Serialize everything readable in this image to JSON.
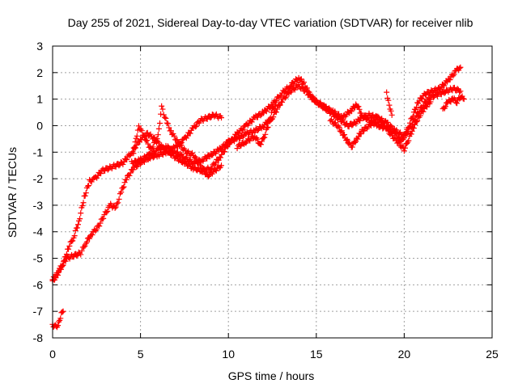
{
  "chart_data": {
    "type": "scatter",
    "title": "Day 255 of 2021, Sidereal Day-to-day VTEC variation (SDTVAR) for receiver nlib",
    "xlabel": "GPS time / hours",
    "ylabel": "SDTVAR / TECUs",
    "xlim": [
      0,
      25
    ],
    "ylim": [
      -8,
      3
    ],
    "xticks": [
      0,
      5,
      10,
      15,
      20,
      25
    ],
    "yticks": [
      -8,
      -7,
      -6,
      -5,
      -4,
      -3,
      -2,
      -1,
      0,
      1,
      2,
      3
    ],
    "grid": true,
    "marker": "plus",
    "color": "#ff0000",
    "series": [
      {
        "name": "track-1",
        "points": [
          [
            0.0,
            -5.8
          ],
          [
            0.3,
            -5.6
          ],
          [
            0.6,
            -5.2
          ],
          [
            0.9,
            -4.6
          ],
          [
            1.2,
            -4.2
          ],
          [
            1.5,
            -3.6
          ],
          [
            1.8,
            -2.7
          ],
          [
            2.1,
            -2.1
          ],
          [
            2.4,
            -2.0
          ],
          [
            2.8,
            -1.7
          ],
          [
            3.2,
            -1.6
          ],
          [
            3.6,
            -1.5
          ],
          [
            4.0,
            -1.4
          ],
          [
            4.5,
            -1.0
          ],
          [
            5.0,
            -0.5
          ],
          [
            5.4,
            -0.3
          ],
          [
            5.8,
            -0.5
          ],
          [
            6.2,
            -0.8
          ],
          [
            6.6,
            -1.0
          ],
          [
            7.0,
            -1.2
          ],
          [
            7.5,
            -1.4
          ],
          [
            8.0,
            -1.6
          ],
          [
            8.5,
            -1.7
          ],
          [
            9.0,
            -1.6
          ],
          [
            9.5,
            -1.2
          ],
          [
            10.0,
            -0.7
          ],
          [
            10.5,
            -0.3
          ],
          [
            11.0,
            0.0
          ],
          [
            11.5,
            0.3
          ],
          [
            12.0,
            0.5
          ],
          [
            12.5,
            0.8
          ],
          [
            13.0,
            1.2
          ],
          [
            13.5,
            1.5
          ],
          [
            14.0,
            1.8
          ],
          [
            14.3,
            1.6
          ],
          [
            14.6,
            1.2
          ],
          [
            15.0,
            0.9
          ],
          [
            15.5,
            0.7
          ],
          [
            16.0,
            0.5
          ],
          [
            16.5,
            0.3
          ],
          [
            17.0,
            0.6
          ],
          [
            17.3,
            0.8
          ],
          [
            17.6,
            0.4
          ],
          [
            18.0,
            0.2
          ],
          [
            18.5,
            0.0
          ],
          [
            19.0,
            -0.1
          ],
          [
            19.5,
            -0.3
          ],
          [
            19.8,
            -0.6
          ],
          [
            20.1,
            -0.3
          ],
          [
            20.5,
            0.4
          ],
          [
            20.8,
            0.9
          ],
          [
            21.2,
            1.2
          ],
          [
            21.6,
            1.3
          ],
          [
            22.0,
            1.4
          ],
          [
            22.5,
            1.7
          ],
          [
            23.0,
            2.1
          ],
          [
            23.2,
            2.2
          ]
        ]
      },
      {
        "name": "track-2",
        "points": [
          [
            0.0,
            -5.9
          ],
          [
            0.4,
            -5.4
          ],
          [
            0.8,
            -5.0
          ],
          [
            1.2,
            -4.9
          ],
          [
            1.6,
            -4.8
          ],
          [
            1.9,
            -4.4
          ],
          [
            2.2,
            -4.1
          ],
          [
            2.6,
            -3.8
          ],
          [
            3.0,
            -3.3
          ],
          [
            3.3,
            -3.0
          ],
          [
            3.6,
            -3.1
          ],
          [
            3.9,
            -2.5
          ],
          [
            4.2,
            -2.0
          ],
          [
            4.6,
            -1.6
          ],
          [
            5.0,
            -1.4
          ],
          [
            5.5,
            -1.2
          ],
          [
            6.0,
            -1.1
          ],
          [
            6.5,
            -1.0
          ],
          [
            7.0,
            -0.8
          ],
          [
            7.5,
            -0.5
          ],
          [
            8.0,
            -0.1
          ],
          [
            8.4,
            0.2
          ],
          [
            8.8,
            0.3
          ],
          [
            9.2,
            0.4
          ],
          [
            9.6,
            0.3
          ]
        ]
      },
      {
        "name": "track-3",
        "points": [
          [
            4.5,
            -1.4
          ],
          [
            5.0,
            -1.3
          ],
          [
            5.5,
            -1.1
          ],
          [
            6.0,
            -0.9
          ],
          [
            6.5,
            -0.8
          ],
          [
            7.0,
            -1.0
          ],
          [
            7.5,
            -1.2
          ],
          [
            8.0,
            -1.4
          ],
          [
            8.5,
            -1.3
          ],
          [
            9.0,
            -1.1
          ],
          [
            9.5,
            -0.9
          ],
          [
            10.0,
            -0.6
          ],
          [
            10.5,
            -0.5
          ],
          [
            11.0,
            -0.3
          ],
          [
            11.5,
            -0.2
          ],
          [
            12.0,
            0.0
          ],
          [
            12.5,
            0.3
          ],
          [
            13.0,
            0.9
          ],
          [
            13.5,
            1.3
          ],
          [
            14.0,
            1.5
          ],
          [
            14.4,
            1.3
          ],
          [
            14.8,
            1.0
          ],
          [
            15.2,
            0.8
          ],
          [
            15.6,
            0.6
          ],
          [
            16.0,
            0.4
          ],
          [
            16.4,
            0.2
          ],
          [
            16.8,
            0.0
          ],
          [
            17.2,
            0.1
          ],
          [
            17.6,
            0.3
          ],
          [
            18.0,
            0.4
          ],
          [
            18.5,
            0.3
          ],
          [
            19.0,
            0.1
          ],
          [
            19.5,
            -0.2
          ],
          [
            20.0,
            -0.4
          ],
          [
            20.4,
            0.0
          ],
          [
            20.8,
            0.5
          ],
          [
            21.2,
            0.9
          ],
          [
            21.6,
            1.1
          ],
          [
            22.0,
            1.2
          ],
          [
            22.4,
            1.3
          ],
          [
            22.8,
            1.4
          ],
          [
            23.2,
            1.3
          ]
        ]
      },
      {
        "name": "track-4",
        "points": [
          [
            0.0,
            -7.5
          ],
          [
            0.2,
            -7.6
          ],
          [
            0.4,
            -7.4
          ],
          [
            0.5,
            -7.1
          ],
          [
            0.6,
            -7.0
          ]
        ]
      },
      {
        "name": "track-5",
        "points": [
          [
            4.6,
            -1.0
          ],
          [
            4.9,
            0.0
          ],
          [
            5.2,
            -0.4
          ],
          [
            5.6,
            -0.9
          ],
          [
            6.0,
            -0.4
          ],
          [
            6.2,
            0.7
          ],
          [
            6.5,
            0.1
          ],
          [
            6.8,
            -0.3
          ],
          [
            7.2,
            -0.7
          ],
          [
            7.6,
            -1.0
          ],
          [
            8.0,
            -1.1
          ],
          [
            8.4,
            -1.5
          ],
          [
            8.8,
            -1.9
          ],
          [
            9.2,
            -1.7
          ],
          [
            9.6,
            -1.5
          ]
        ]
      },
      {
        "name": "track-6",
        "points": [
          [
            10.5,
            -0.8
          ],
          [
            11.0,
            -0.6
          ],
          [
            11.5,
            -0.4
          ],
          [
            11.8,
            -0.7
          ],
          [
            12.0,
            -0.5
          ],
          [
            12.3,
            0.1
          ],
          [
            12.5,
            0.6
          ],
          [
            12.7,
            0.8
          ]
        ]
      },
      {
        "name": "track-7",
        "points": [
          [
            15.8,
            0.2
          ],
          [
            16.2,
            0.0
          ],
          [
            16.5,
            -0.3
          ],
          [
            16.8,
            -0.6
          ],
          [
            17.0,
            -0.8
          ],
          [
            17.3,
            -0.5
          ],
          [
            17.6,
            -0.2
          ],
          [
            18.0,
            0.0
          ],
          [
            18.4,
            0.2
          ],
          [
            18.8,
            0.1
          ],
          [
            19.2,
            -0.3
          ],
          [
            19.6,
            -0.6
          ],
          [
            20.0,
            -0.9
          ],
          [
            20.2,
            -0.6
          ],
          [
            20.5,
            -0.1
          ],
          [
            20.8,
            0.3
          ],
          [
            21.2,
            0.7
          ],
          [
            21.5,
            0.9
          ]
        ]
      },
      {
        "name": "track-8",
        "points": [
          [
            22.2,
            0.6
          ],
          [
            22.5,
            0.9
          ],
          [
            22.8,
            1.0
          ],
          [
            23.0,
            0.9
          ],
          [
            23.2,
            1.1
          ],
          [
            23.4,
            1.0
          ]
        ]
      },
      {
        "name": "track-9",
        "points": [
          [
            19.0,
            1.2
          ],
          [
            19.1,
            0.9
          ],
          [
            19.2,
            0.6
          ],
          [
            19.3,
            0.4
          ]
        ]
      }
    ]
  }
}
